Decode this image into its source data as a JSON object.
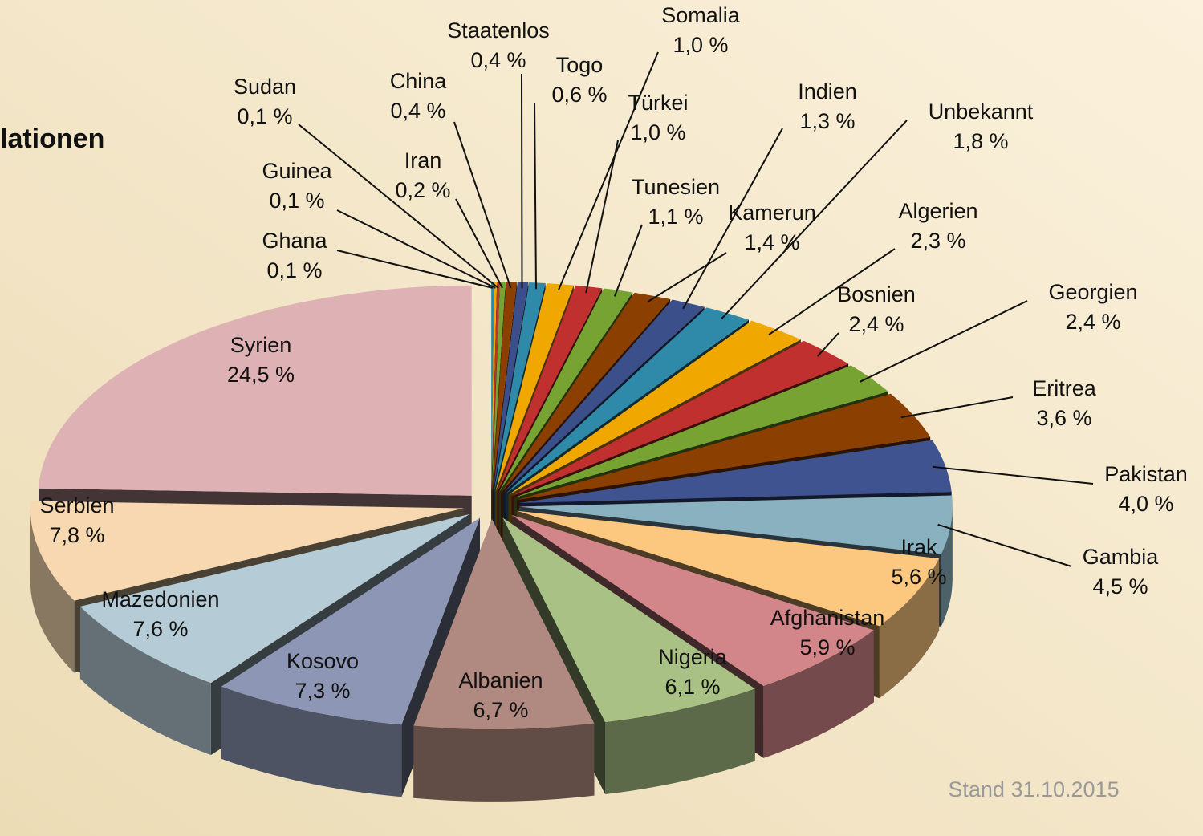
{
  "chart_data": {
    "type": "pie",
    "title": "lationen",
    "annotation": "Stand 31.10.2015",
    "categories": [
      "Ghana",
      "Guinea",
      "Sudan",
      "Iran",
      "China",
      "Staatenlos",
      "Togo",
      "Somalia",
      "Türkei",
      "Tunesien",
      "Kamerun",
      "Indien",
      "Unbekannt",
      "Algerien",
      "Bosnien",
      "Georgien",
      "Eritrea",
      "Pakistan",
      "Gambia",
      "Irak",
      "Afghanistan",
      "Nigeria",
      "Albanien",
      "Kosovo",
      "Mazedonien",
      "Serbien",
      "Syrien"
    ],
    "values": [
      0.1,
      0.1,
      0.1,
      0.2,
      0.4,
      0.4,
      0.6,
      1.0,
      1.0,
      1.1,
      1.4,
      1.3,
      1.8,
      2.3,
      2.4,
      2.4,
      3.6,
      4.0,
      4.5,
      5.6,
      5.9,
      6.1,
      6.7,
      7.3,
      7.6,
      7.8,
      24.5
    ],
    "value_labels": [
      "0,1 %",
      "0,1 %",
      "0,1 %",
      "0,2 %",
      "0,4 %",
      "0,4 %",
      "0,6 %",
      "1,0 %",
      "1,0 %",
      "1,1 %",
      "1,4 %",
      "1,3 %",
      "1,8 %",
      "2,3 %",
      "2,4 %",
      "2,4 %",
      "3,6 %",
      "4,0 %",
      "4,5 %",
      "5,6 %",
      "5,9 %",
      "6,1 %",
      "6,7 %",
      "7,3 %",
      "7,6 %",
      "7,8 %",
      "24,5 %"
    ],
    "colors": [
      "#2e8aa8",
      "#f0a800",
      "#c0302e",
      "#77a332",
      "#8b3f00",
      "#3b4f8a",
      "#2e8aa8",
      "#f0a800",
      "#c0302e",
      "#77a332",
      "#8b3f00",
      "#3b4f8a",
      "#2e8aa8",
      "#f0a800",
      "#c0302e",
      "#77a332",
      "#8b3f00",
      "#3f5390",
      "#8ab1c0",
      "#fcc77e",
      "#d2868a",
      "#a9c184",
      "#b08a80",
      "#8e96b6",
      "#b5ccd6",
      "#f8d8b0",
      "#deb2b4"
    ]
  }
}
